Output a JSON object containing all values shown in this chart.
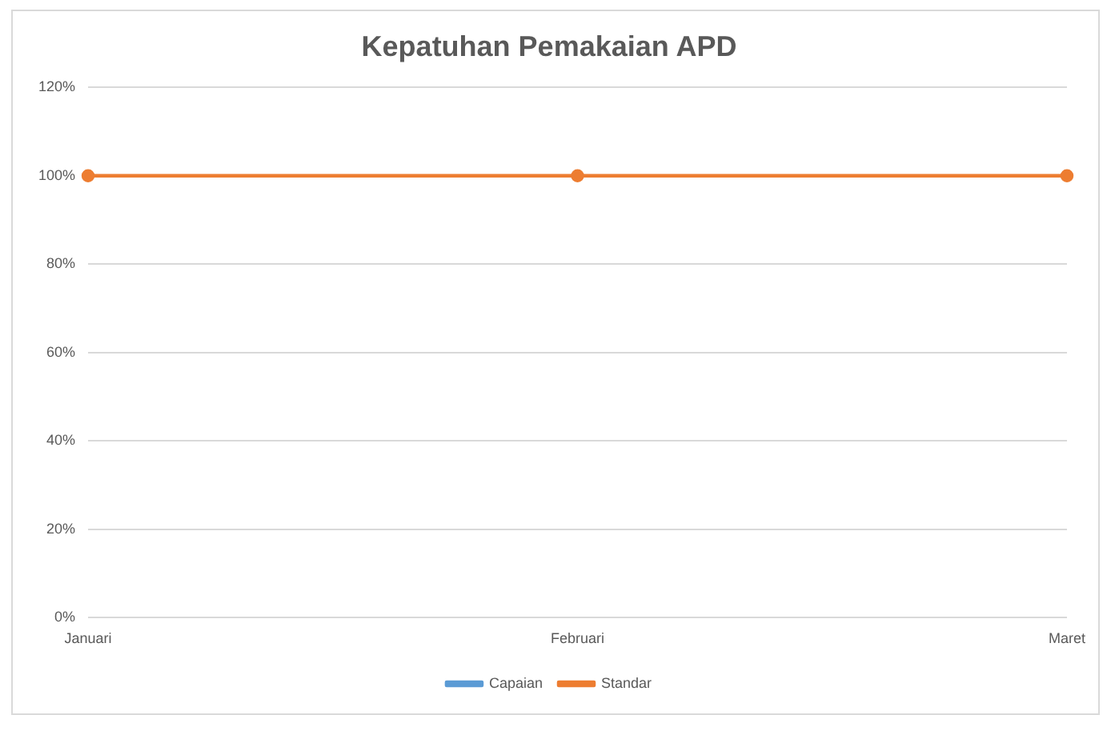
{
  "chart_data": {
    "type": "line",
    "title": "Kepatuhan Pemakaian APD",
    "categories": [
      "Januari",
      "Februari",
      "Maret"
    ],
    "series": [
      {
        "name": "Capaian",
        "color": "#5b9bd5",
        "values": [
          null,
          null,
          null
        ]
      },
      {
        "name": "Standar",
        "color": "#ed7d31",
        "values": [
          100,
          100,
          100
        ]
      }
    ],
    "ylim": [
      0,
      120
    ],
    "yticks": [
      {
        "value": 0,
        "label": "0%"
      },
      {
        "value": 20,
        "label": "20%"
      },
      {
        "value": 40,
        "label": "40%"
      },
      {
        "value": 60,
        "label": "60%"
      },
      {
        "value": 80,
        "label": "80%"
      },
      {
        "value": 100,
        "label": "100%"
      },
      {
        "value": 120,
        "label": "120%"
      }
    ],
    "grid": "y",
    "legend": "bottom",
    "marker": "circle",
    "line_style": "solid"
  }
}
